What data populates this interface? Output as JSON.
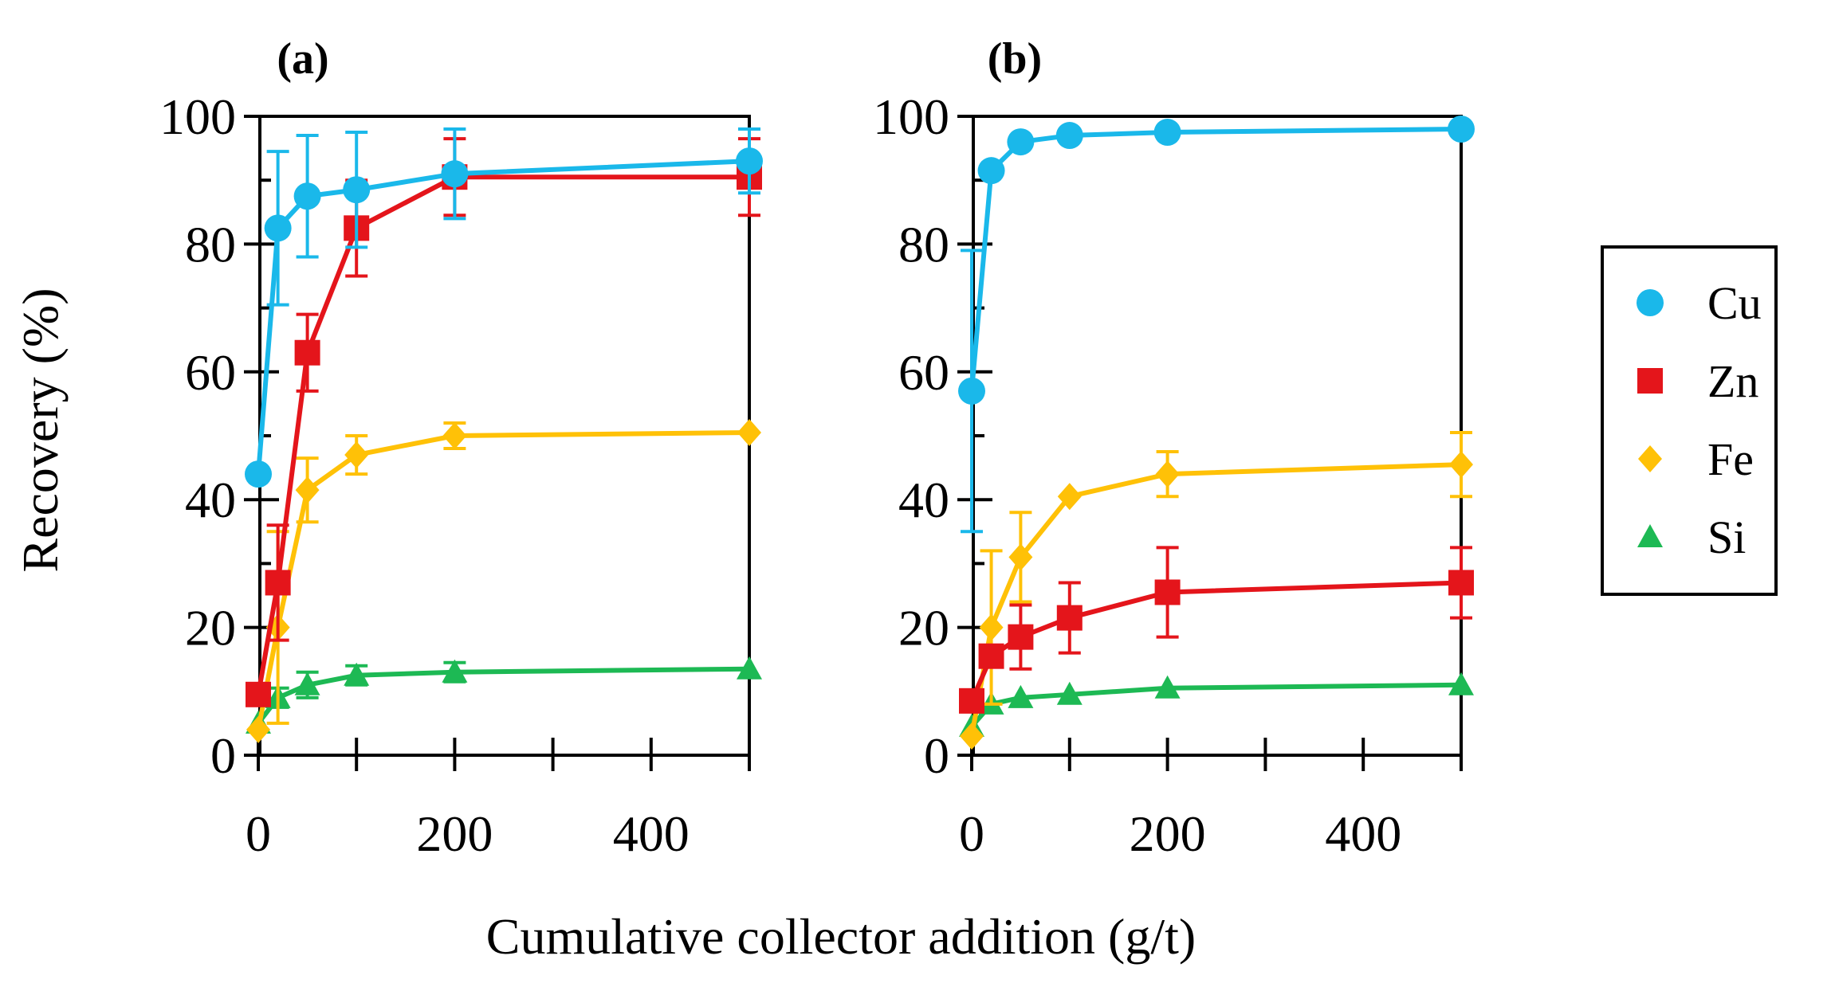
{
  "chart_data": {
    "type": "line",
    "ylabel": "Recovery (%)",
    "xlabel": "Cumulative collector addition (g/t)",
    "ylim": [
      0,
      100
    ],
    "xlim": [
      0,
      500
    ],
    "yticks": [
      "0",
      "20",
      "40",
      "60",
      "80",
      "100"
    ],
    "xticks": [
      "0",
      "200",
      "400"
    ],
    "grid": false,
    "legend_position": "right",
    "legend": [
      {
        "name": "Cu",
        "color": "#1AB8EA",
        "marker": "circle"
      },
      {
        "name": "Zn",
        "color": "#E4151B",
        "marker": "square"
      },
      {
        "name": "Fe",
        "color": "#FFC107",
        "marker": "diamond"
      },
      {
        "name": "Si",
        "color": "#1DB954",
        "marker": "triangle"
      }
    ],
    "panels": [
      {
        "label": "(a)",
        "x": [
          0,
          20,
          50,
          100,
          200,
          500
        ],
        "series": [
          {
            "name": "Cu",
            "values": [
              44,
              82.5,
              87.5,
              88.5,
              91,
              93
            ],
            "errors": [
              0,
              12,
              9.5,
              9,
              7,
              5
            ]
          },
          {
            "name": "Zn",
            "values": [
              9.5,
              27,
              63,
              82.5,
              90.5,
              90.5
            ],
            "errors": [
              0,
              9,
              6,
              7.5,
              6,
              6
            ]
          },
          {
            "name": "Fe",
            "values": [
              4,
              20,
              41.5,
              47,
              50,
              50.5
            ],
            "errors": [
              0,
              15,
              5,
              3,
              2,
              0
            ]
          },
          {
            "name": "Si",
            "values": [
              5,
              9,
              11,
              12.5,
              13,
              13.5
            ],
            "errors": [
              0,
              1.5,
              2,
              1.5,
              1.5,
              0
            ]
          }
        ]
      },
      {
        "label": "(b)",
        "x": [
          0,
          20,
          50,
          100,
          200,
          500
        ],
        "series": [
          {
            "name": "Cu",
            "values": [
              57,
              91.5,
              96,
              97,
              97.5,
              98
            ],
            "errors": [
              22,
              0,
              0,
              0,
              0,
              0
            ]
          },
          {
            "name": "Zn",
            "values": [
              8.5,
              15.5,
              18.5,
              21.5,
              25.5,
              27
            ],
            "errors": [
              0,
              0,
              5,
              5.5,
              7,
              5.5
            ]
          },
          {
            "name": "Fe",
            "values": [
              3,
              20,
              31,
              40.5,
              44,
              45.5
            ],
            "errors": [
              0,
              12,
              7,
              0,
              3.5,
              5
            ]
          },
          {
            "name": "Si",
            "values": [
              4.5,
              8,
              9,
              9.5,
              10.5,
              11
            ],
            "errors": [
              0,
              0,
              0,
              0,
              0,
              0
            ]
          }
        ]
      }
    ]
  }
}
